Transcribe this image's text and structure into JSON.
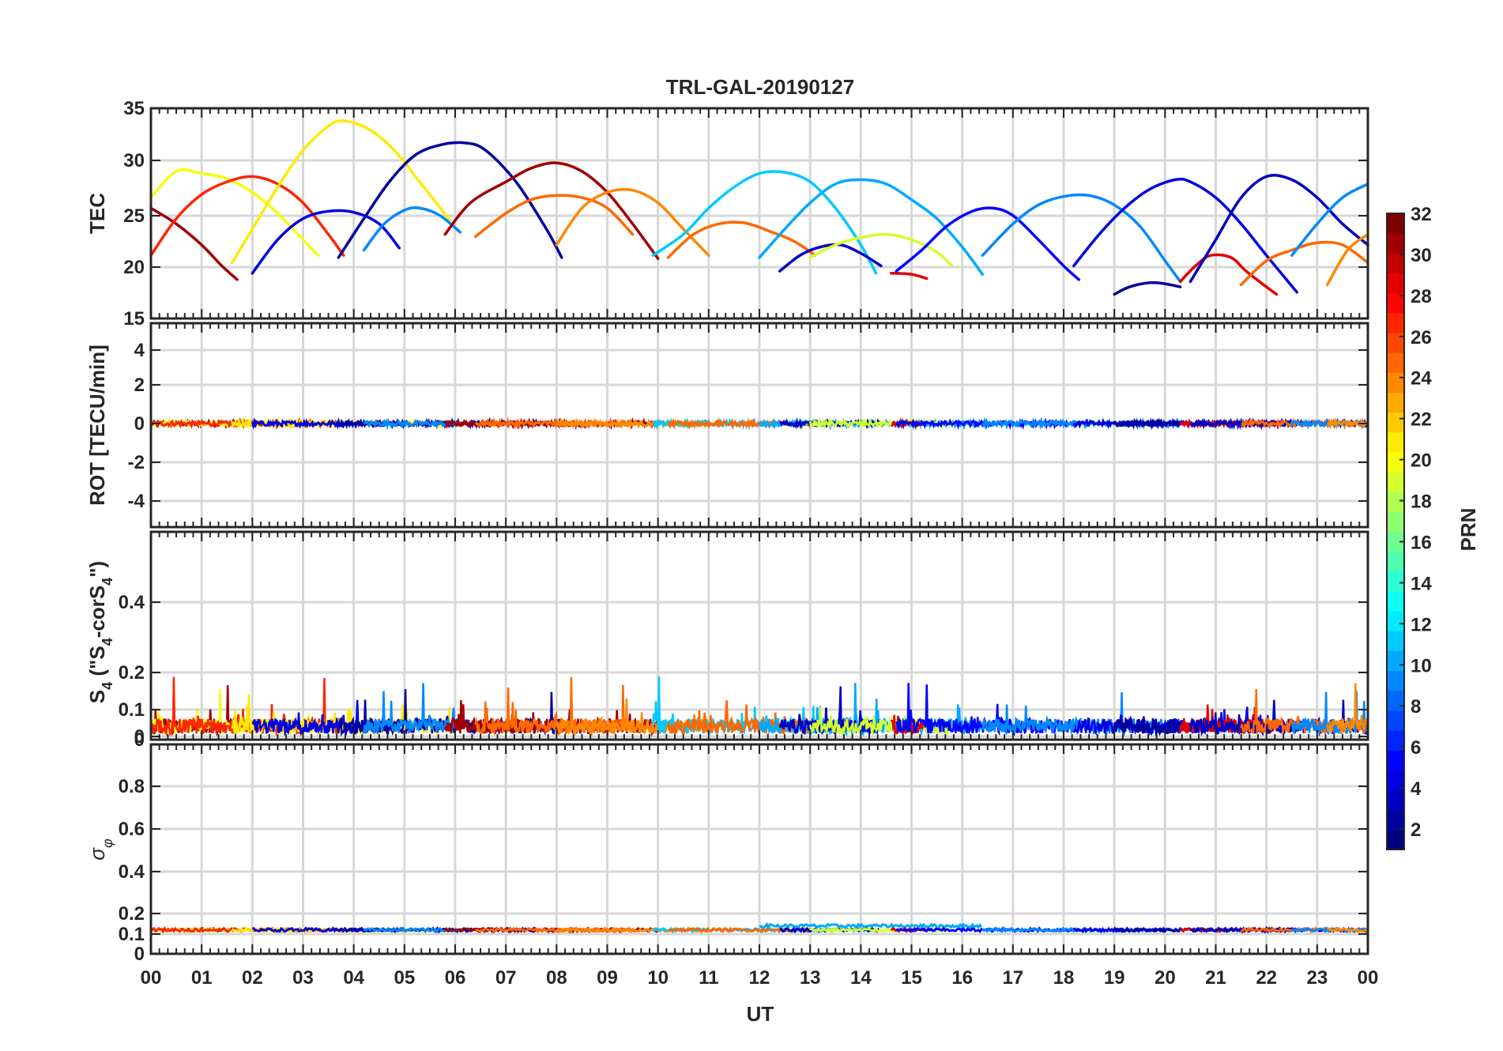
{
  "title": "TRL-GAL-20190127",
  "chart_data": {
    "type": "line",
    "title": "TRL-GAL-20190127",
    "xlabel": "UT",
    "xlim": [
      0,
      24
    ],
    "x_tick_labels": [
      "00",
      "01",
      "02",
      "03",
      "04",
      "05",
      "06",
      "07",
      "08",
      "09",
      "10",
      "11",
      "12",
      "13",
      "14",
      "15",
      "16",
      "17",
      "18",
      "19",
      "20",
      "21",
      "22",
      "23",
      "00"
    ],
    "colorbar": {
      "label": "PRN",
      "limits": [
        1,
        32
      ],
      "tick_labels": [
        "2",
        "4",
        "6",
        "8",
        "10",
        "12",
        "14",
        "16",
        "18",
        "20",
        "22",
        "24",
        "26",
        "28",
        "30",
        "32"
      ]
    },
    "panels": [
      {
        "id": "tec",
        "ylabel": "TEC",
        "ylim": [
          15,
          35
        ],
        "y_tick_labels": [
          "15",
          "20",
          "25",
          "30",
          "35"
        ],
        "series": [
          {
            "prn": 31,
            "x": [
              0,
              0.5,
              1.0,
              1.4,
              1.7
            ],
            "y": [
              25.5,
              24.0,
              22.0,
              20.0,
              18.7
            ]
          },
          {
            "prn": 20,
            "x": [
              0,
              0.5,
              1.0,
              1.5,
              2.0,
              2.5,
              3.0,
              3.3
            ],
            "y": [
              26.5,
              29.0,
              28.8,
              28.3,
              27.0,
              25.0,
              22.5,
              21.0
            ]
          },
          {
            "prn": 27,
            "x": [
              0,
              0.5,
              1.0,
              1.5,
              2.0,
              2.5,
              3.0,
              3.5,
              3.8
            ],
            "y": [
              21.0,
              24.5,
              26.8,
              28.0,
              28.5,
              27.8,
              26.0,
              23.0,
              21.0
            ]
          },
          {
            "prn": 21,
            "x": [
              1.6,
              2.0,
              2.5,
              3.0,
              3.5,
              3.8,
              4.3,
              4.8,
              5.3,
              5.9
            ],
            "y": [
              20.3,
              23.5,
              27.5,
              31.0,
              33.3,
              33.8,
              33.0,
              31.0,
              28.0,
              24.3
            ]
          },
          {
            "prn": 4,
            "x": [
              2.0,
              2.5,
              3.0,
              3.5,
              4.0,
              4.5,
              4.9
            ],
            "y": [
              19.3,
              22.5,
              24.5,
              25.2,
              25.1,
              24.0,
              21.7
            ]
          },
          {
            "prn": 2,
            "x": [
              3.7,
              4.2,
              4.7,
              5.2,
              5.7,
              6.2,
              6.6,
              7.2,
              7.8,
              8.1
            ],
            "y": [
              20.8,
              24.5,
              28.0,
              30.5,
              31.5,
              31.7,
              31.0,
              28.0,
              23.5,
              20.8
            ]
          },
          {
            "prn": 9,
            "x": [
              4.2,
              4.6,
              5.0,
              5.3,
              5.7,
              6.1
            ],
            "y": [
              21.5,
              24.0,
              25.3,
              25.5,
              24.8,
              23.2
            ]
          },
          {
            "prn": 31,
            "x": [
              5.8,
              6.3,
              7.0,
              7.5,
              8.0,
              8.5,
              9.0,
              9.5,
              10.0
            ],
            "y": [
              23.0,
              26.0,
              28.0,
              29.3,
              29.8,
              29.0,
              27.0,
              24.0,
              20.7
            ]
          },
          {
            "prn": 25,
            "x": [
              6.4,
              7.0,
              7.5,
              8.0,
              8.5,
              9.0,
              9.5
            ],
            "y": [
              22.8,
              25.0,
              26.3,
              26.7,
              26.5,
              25.5,
              23.0
            ]
          },
          {
            "prn": 24,
            "x": [
              8.0,
              8.5,
              9.0,
              9.5,
              10.0,
              10.5,
              11.0
            ],
            "y": [
              22.0,
              25.5,
              27.0,
              27.2,
              26.0,
              23.5,
              21.0
            ]
          },
          {
            "prn": 11,
            "x": [
              9.9,
              10.5,
              11.0,
              11.5,
              12.0,
              12.5,
              13.0,
              13.5,
              14.0,
              14.3
            ],
            "y": [
              21.0,
              23.0,
              25.5,
              27.5,
              28.8,
              28.9,
              28.0,
              25.5,
              22.0,
              19.3
            ]
          },
          {
            "prn": 25,
            "x": [
              10.2,
              10.7,
              11.2,
              11.7,
              12.2,
              12.7,
              13.1
            ],
            "y": [
              20.8,
              23.0,
              24.0,
              24.1,
              23.3,
              22.3,
              21.0
            ]
          },
          {
            "prn": 10,
            "x": [
              12.0,
              12.5,
              13.0,
              13.5,
              14.0,
              14.5,
              15.0,
              15.5,
              16.0,
              16.4
            ],
            "y": [
              20.8,
              23.5,
              26.0,
              27.8,
              28.2,
              27.8,
              26.3,
              24.5,
              21.8,
              19.2
            ]
          },
          {
            "prn": 3,
            "x": [
              12.4,
              12.8,
              13.2,
              13.6,
              14.0,
              14.4
            ],
            "y": [
              19.5,
              21.0,
              21.8,
              22.0,
              21.2,
              20.0
            ]
          },
          {
            "prn": 19,
            "x": [
              13.0,
              13.5,
              14.0,
              14.5,
              15.0,
              15.5,
              15.8
            ],
            "y": [
              20.8,
              22.0,
              22.7,
              23.0,
              22.5,
              21.3,
              20.0
            ]
          },
          {
            "prn": 29,
            "x": [
              14.6,
              15.0,
              15.3
            ],
            "y": [
              19.3,
              19.2,
              18.8
            ]
          },
          {
            "prn": 5,
            "x": [
              14.7,
              15.2,
              15.7,
              16.2,
              16.6,
              17.0,
              17.5,
              18.0,
              18.3
            ],
            "y": [
              19.5,
              21.5,
              23.8,
              25.2,
              25.5,
              24.8,
              22.5,
              20.0,
              18.7
            ]
          },
          {
            "prn": 9,
            "x": [
              16.4,
              17.0,
              17.5,
              18.0,
              18.5,
              19.0,
              19.5,
              20.0,
              20.3
            ],
            "y": [
              21.0,
              24.0,
              25.8,
              26.6,
              26.7,
              25.8,
              23.8,
              20.5,
              18.5
            ]
          },
          {
            "prn": 4,
            "x": [
              18.2,
              18.7,
              19.2,
              19.7,
              20.2,
              20.5,
              21.0,
              21.5,
              22.0,
              22.6
            ],
            "y": [
              20.0,
              23.0,
              25.5,
              27.3,
              28.2,
              28.0,
              26.5,
              24.0,
              21.0,
              17.5
            ]
          },
          {
            "prn": 2,
            "x": [
              19.0,
              19.3,
              19.7,
              20.0,
              20.3
            ],
            "y": [
              17.3,
              18.0,
              18.4,
              18.3,
              18.0
            ]
          },
          {
            "prn": 29,
            "x": [
              20.3,
              20.6,
              20.9,
              21.3,
              21.6,
              22.0,
              22.2
            ],
            "y": [
              18.5,
              20.0,
              21.0,
              20.8,
              19.5,
              18.0,
              17.3
            ]
          },
          {
            "prn": 3,
            "x": [
              20.5,
              21.0,
              21.5,
              22.0,
              22.5,
              23.0,
              23.5,
              24.0
            ],
            "y": [
              18.5,
              22.5,
              26.5,
              28.5,
              28.2,
              26.5,
              24.0,
              22.0
            ]
          },
          {
            "prn": 25,
            "x": [
              21.5,
              22.0,
              22.5,
              23.0,
              23.5,
              24.0
            ],
            "y": [
              18.2,
              20.5,
              21.5,
              22.2,
              22.0,
              20.3
            ]
          },
          {
            "prn": 9,
            "x": [
              22.5,
              23.0,
              23.5,
              24.0
            ],
            "y": [
              21.0,
              24.0,
              26.5,
              27.8
            ]
          },
          {
            "prn": 24,
            "x": [
              23.2,
              23.6,
              24.0
            ],
            "y": [
              18.2,
              21.5,
              23.0
            ]
          }
        ]
      },
      {
        "id": "rot",
        "ylabel": "ROT [TECU/min]",
        "ylim": [
          -5,
          5
        ],
        "y_tick_labels": [
          "-4",
          "-2",
          "0",
          "2",
          "4"
        ],
        "description_note": "all traces near 0, small noise (|ROT| < 0.2)",
        "baseline": 0,
        "noise_amplitude": 0.12
      },
      {
        "id": "s4",
        "ylabel": "S_4 (\"S_4-corS_4\")",
        "ylim": [
          0,
          0.6
        ],
        "y_tick_labels": [
          "0",
          "0",
          "0.1",
          "0.2",
          "0.4"
        ],
        "baseline_range": [
          0.02,
          0.08
        ],
        "max_spike": 0.19
      },
      {
        "id": "sigma",
        "ylabel": "σ_φ",
        "ylim": [
          0,
          1
        ],
        "y_tick_labels": [
          "0",
          "0.1",
          "0.2",
          "0.4",
          "0.6",
          "0.8"
        ],
        "baseline": 0.12
      }
    ]
  }
}
